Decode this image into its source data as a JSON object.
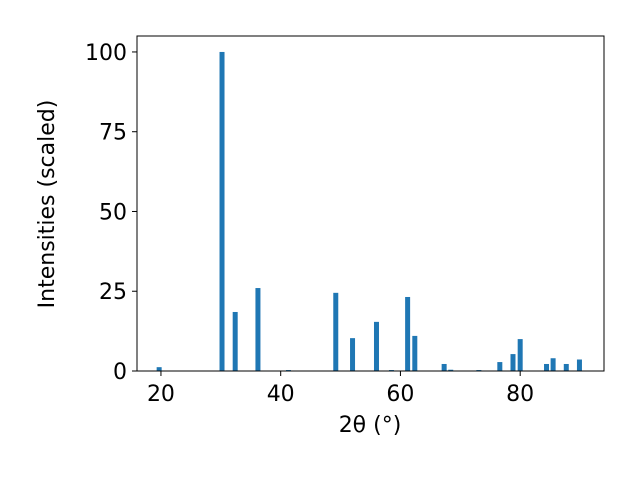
{
  "chart_data": {
    "type": "bar",
    "xlabel": "2θ (°)",
    "ylabel": "Intensities (scaled)",
    "x": [
      19.7,
      30.2,
      32.4,
      36.2,
      41.3,
      49.2,
      52.0,
      56.0,
      58.5,
      61.2,
      62.4,
      67.3,
      68.4,
      73.1,
      76.6,
      78.8,
      80.0,
      84.4,
      85.5,
      87.7,
      89.9
    ],
    "values": [
      1.2,
      100,
      18.5,
      26,
      0.3,
      24.5,
      10.3,
      15.4,
      0.3,
      23.2,
      11,
      2.2,
      0.4,
      0.3,
      2.8,
      5.3,
      10,
      2.2,
      4,
      2.2,
      3.6
    ],
    "color": "#1f77b4",
    "xlim": [
      16,
      94
    ],
    "xticks": [
      20,
      40,
      60,
      80
    ],
    "ylim": [
      0,
      105
    ],
    "yticks": [
      0,
      25,
      50,
      75,
      100
    ]
  }
}
